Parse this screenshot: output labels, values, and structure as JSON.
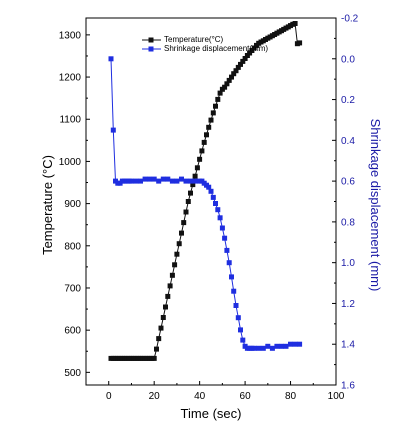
{
  "chart_data": {
    "type": "scatter",
    "xlabel": "Time (sec)",
    "ylabel_left": "Temperature (°C)",
    "ylabel_right": "Shrinkage displacement (mm)",
    "xlim": [
      -10,
      100
    ],
    "ylim_left": [
      470,
      1340
    ],
    "ylim_right": [
      1.6,
      -0.2
    ],
    "right_axis_inverted": true,
    "x_ticks": [
      0,
      20,
      40,
      60,
      80,
      100
    ],
    "y_left_ticks": [
      500,
      600,
      700,
      800,
      900,
      1000,
      1100,
      1200,
      1300
    ],
    "y_right_ticks": [
      "-0.2",
      "0.0",
      "0.2",
      "0.4",
      "0.6",
      "0.8",
      "1.0",
      "1.2",
      "1.4",
      "1.6"
    ],
    "legend": {
      "placement": "top-center",
      "entries": [
        "Temperature(°C)",
        "Shrinkage displacement(mm)"
      ]
    },
    "colors": {
      "temperature": "#111111",
      "shrinkage": "#1f2ee0",
      "right_axis": "#1a1aa6"
    },
    "series": [
      {
        "name": "Temperature(°C)",
        "axis": "left",
        "marker": "square",
        "x": [
          1,
          2,
          3,
          4,
          5,
          6,
          7,
          8,
          9,
          10,
          11,
          12,
          13,
          14,
          15,
          16,
          17,
          18,
          19,
          20,
          21,
          22,
          23,
          24,
          25,
          26,
          27,
          28,
          29,
          30,
          31,
          32,
          33,
          34,
          35,
          36,
          37,
          38,
          39,
          40,
          41,
          42,
          43,
          44,
          45,
          46,
          47,
          48,
          49,
          50,
          51,
          52,
          53,
          54,
          55,
          56,
          57,
          58,
          59,
          60,
          61,
          62,
          63,
          64,
          65,
          66,
          67,
          68,
          69,
          70,
          71,
          72,
          73,
          74,
          75,
          76,
          77,
          78,
          79,
          80,
          81,
          82,
          83,
          84
        ],
        "values": [
          533,
          533,
          533,
          533,
          533,
          533,
          533,
          533,
          533,
          533,
          533,
          533,
          533,
          533,
          533,
          533,
          533,
          533,
          533,
          533,
          555,
          580,
          605,
          630,
          655,
          680,
          705,
          730,
          755,
          780,
          805,
          830,
          855,
          880,
          905,
          925,
          945,
          965,
          985,
          1005,
          1025,
          1045,
          1063,
          1081,
          1098,
          1115,
          1131,
          1147,
          1162,
          1171,
          1176,
          1184,
          1192,
          1200,
          1208,
          1215,
          1223,
          1230,
          1237,
          1244,
          1251,
          1257,
          1263,
          1269,
          1275,
          1280,
          1283,
          1286,
          1289,
          1292,
          1295,
          1298,
          1301,
          1304,
          1307,
          1310,
          1313,
          1316,
          1319,
          1322,
          1325,
          1327,
          1279,
          1281
        ]
      },
      {
        "name": "Shrinkage displacement(mm)",
        "axis": "right",
        "marker": "square",
        "x": [
          1,
          2,
          3,
          4,
          5,
          6,
          7,
          8,
          9,
          10,
          12,
          14,
          16,
          18,
          20,
          22,
          24,
          26,
          28,
          30,
          32,
          34,
          36,
          38,
          40,
          41,
          42,
          43,
          44,
          45,
          46,
          47,
          48,
          49,
          50,
          51,
          52,
          53,
          54,
          55,
          56,
          57,
          58,
          59,
          60,
          61,
          62,
          63,
          64,
          66,
          68,
          70,
          72,
          74,
          76,
          78,
          80,
          82,
          84
        ],
        "values": [
          0.0,
          0.35,
          0.6,
          0.61,
          0.61,
          0.6,
          0.6,
          0.6,
          0.6,
          0.6,
          0.6,
          0.6,
          0.59,
          0.59,
          0.59,
          0.6,
          0.59,
          0.59,
          0.6,
          0.6,
          0.59,
          0.6,
          0.6,
          0.6,
          0.6,
          0.6,
          0.61,
          0.62,
          0.63,
          0.65,
          0.68,
          0.71,
          0.74,
          0.78,
          0.83,
          0.88,
          0.94,
          1.0,
          1.07,
          1.14,
          1.21,
          1.27,
          1.33,
          1.38,
          1.41,
          1.42,
          1.42,
          1.42,
          1.42,
          1.42,
          1.42,
          1.41,
          1.42,
          1.41,
          1.41,
          1.41,
          1.4,
          1.4,
          1.4
        ]
      }
    ]
  }
}
